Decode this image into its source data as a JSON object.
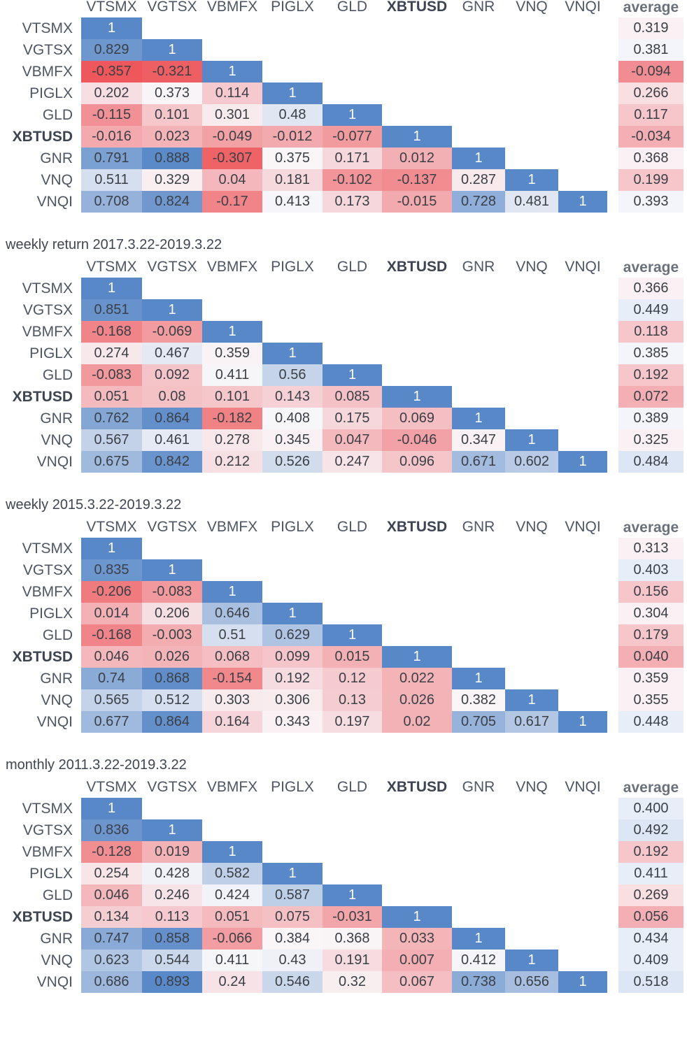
{
  "chart_data": [
    {
      "type": "heatmap",
      "title": "",
      "columns": [
        "VTSMX",
        "VGTSX",
        "VBMFX",
        "PIGLX",
        "GLD",
        "XBTUSD",
        "GNR",
        "VNQ",
        "VNQI"
      ],
      "rows": [
        "VTSMX",
        "VGTSX",
        "VBMFX",
        "PIGLX",
        "GLD",
        "XBTUSD",
        "GNR",
        "VNQ",
        "VNQI"
      ],
      "bold_label": "XBTUSD",
      "average_label": "average",
      "values": [
        [
          "1"
        ],
        [
          "0.829",
          "1"
        ],
        [
          "-0.357",
          "-0.321",
          "1"
        ],
        [
          "0.202",
          "0.373",
          "0.114",
          "1"
        ],
        [
          "-0.115",
          "0.101",
          "0.301",
          "0.48",
          "1"
        ],
        [
          "-0.016",
          "0.023",
          "-0.049",
          "-0.012",
          "-0.077",
          "1"
        ],
        [
          "0.791",
          "0.888",
          "-0.307",
          "0.375",
          "0.171",
          "0.012",
          "1"
        ],
        [
          "0.511",
          "0.329",
          "0.04",
          "0.181",
          "-0.102",
          "-0.137",
          "0.287",
          "1"
        ],
        [
          "0.708",
          "0.824",
          "-0.17",
          "0.413",
          "0.173",
          "-0.015",
          "0.728",
          "0.481",
          "1"
        ]
      ],
      "averages": [
        "0.319",
        "0.381",
        "-0.094",
        "0.266",
        "0.117",
        "-0.034",
        "0.368",
        "0.199",
        "0.393"
      ]
    },
    {
      "type": "heatmap",
      "title": "weekly return 2017.3.22-2019.3.22",
      "columns": [
        "VTSMX",
        "VGTSX",
        "VBMFX",
        "PIGLX",
        "GLD",
        "XBTUSD",
        "GNR",
        "VNQ",
        "VNQI"
      ],
      "rows": [
        "VTSMX",
        "VGTSX",
        "VBMFX",
        "PIGLX",
        "GLD",
        "XBTUSD",
        "GNR",
        "VNQ",
        "VNQI"
      ],
      "bold_label": "XBTUSD",
      "average_label": "average",
      "values": [
        [
          "1"
        ],
        [
          "0.851",
          "1"
        ],
        [
          "-0.168",
          "-0.069",
          "1"
        ],
        [
          "0.274",
          "0.467",
          "0.359",
          "1"
        ],
        [
          "-0.083",
          "0.092",
          "0.411",
          "0.56",
          "1"
        ],
        [
          "0.051",
          "0.08",
          "0.101",
          "0.143",
          "0.085",
          "1"
        ],
        [
          "0.762",
          "0.864",
          "-0.182",
          "0.408",
          "0.175",
          "0.069",
          "1"
        ],
        [
          "0.567",
          "0.461",
          "0.278",
          "0.345",
          "0.047",
          "-0.046",
          "0.347",
          "1"
        ],
        [
          "0.675",
          "0.842",
          "0.212",
          "0.526",
          "0.247",
          "0.096",
          "0.671",
          "0.602",
          "1"
        ]
      ],
      "averages": [
        "0.366",
        "0.449",
        "0.118",
        "0.385",
        "0.192",
        "0.072",
        "0.389",
        "0.325",
        "0.484"
      ]
    },
    {
      "type": "heatmap",
      "title": "weekly 2015.3.22-2019.3.22",
      "columns": [
        "VTSMX",
        "VGTSX",
        "VBMFX",
        "PIGLX",
        "GLD",
        "XBTUSD",
        "GNR",
        "VNQ",
        "VNQI"
      ],
      "rows": [
        "VTSMX",
        "VGTSX",
        "VBMFX",
        "PIGLX",
        "GLD",
        "XBTUSD",
        "GNR",
        "VNQ",
        "VNQI"
      ],
      "bold_label": "XBTUSD",
      "average_label": "average",
      "values": [
        [
          "1"
        ],
        [
          "0.835",
          "1"
        ],
        [
          "-0.206",
          "-0.083",
          "1"
        ],
        [
          "0.014",
          "0.206",
          "0.646",
          "1"
        ],
        [
          "-0.168",
          "-0.003",
          "0.51",
          "0.629",
          "1"
        ],
        [
          "0.046",
          "0.026",
          "0.068",
          "0.099",
          "0.015",
          "1"
        ],
        [
          "0.74",
          "0.868",
          "-0.154",
          "0.192",
          "0.12",
          "0.022",
          "1"
        ],
        [
          "0.565",
          "0.512",
          "0.303",
          "0.306",
          "0.13",
          "0.026",
          "0.382",
          "1"
        ],
        [
          "0.677",
          "0.864",
          "0.164",
          "0.343",
          "0.197",
          "0.02",
          "0.705",
          "0.617",
          "1"
        ]
      ],
      "averages": [
        "0.313",
        "0.403",
        "0.156",
        "0.304",
        "0.179",
        "0.040",
        "0.359",
        "0.355",
        "0.448"
      ]
    },
    {
      "type": "heatmap",
      "title": "monthly 2011.3.22-2019.3.22",
      "columns": [
        "VTSMX",
        "VGTSX",
        "VBMFX",
        "PIGLX",
        "GLD",
        "XBTUSD",
        "GNR",
        "VNQ",
        "VNQI"
      ],
      "rows": [
        "VTSMX",
        "VGTSX",
        "VBMFX",
        "PIGLX",
        "GLD",
        "XBTUSD",
        "GNR",
        "VNQ",
        "VNQI"
      ],
      "bold_label": "XBTUSD",
      "average_label": "average",
      "values": [
        [
          "1"
        ],
        [
          "0.836",
          "1"
        ],
        [
          "-0.128",
          "0.019",
          "1"
        ],
        [
          "0.254",
          "0.428",
          "0.582",
          "1"
        ],
        [
          "0.046",
          "0.246",
          "0.424",
          "0.587",
          "1"
        ],
        [
          "0.134",
          "0.113",
          "0.051",
          "0.075",
          "-0.031",
          "1"
        ],
        [
          "0.747",
          "0.858",
          "-0.066",
          "0.384",
          "0.368",
          "0.033",
          "1"
        ],
        [
          "0.623",
          "0.544",
          "0.411",
          "0.43",
          "0.191",
          "0.007",
          "0.412",
          "1"
        ],
        [
          "0.686",
          "0.893",
          "0.24",
          "0.546",
          "0.32",
          "0.067",
          "0.738",
          "0.656",
          "1"
        ]
      ],
      "averages": [
        "0.400",
        "0.492",
        "0.192",
        "0.411",
        "0.269",
        "0.056",
        "0.434",
        "0.409",
        "0.518"
      ]
    }
  ]
}
